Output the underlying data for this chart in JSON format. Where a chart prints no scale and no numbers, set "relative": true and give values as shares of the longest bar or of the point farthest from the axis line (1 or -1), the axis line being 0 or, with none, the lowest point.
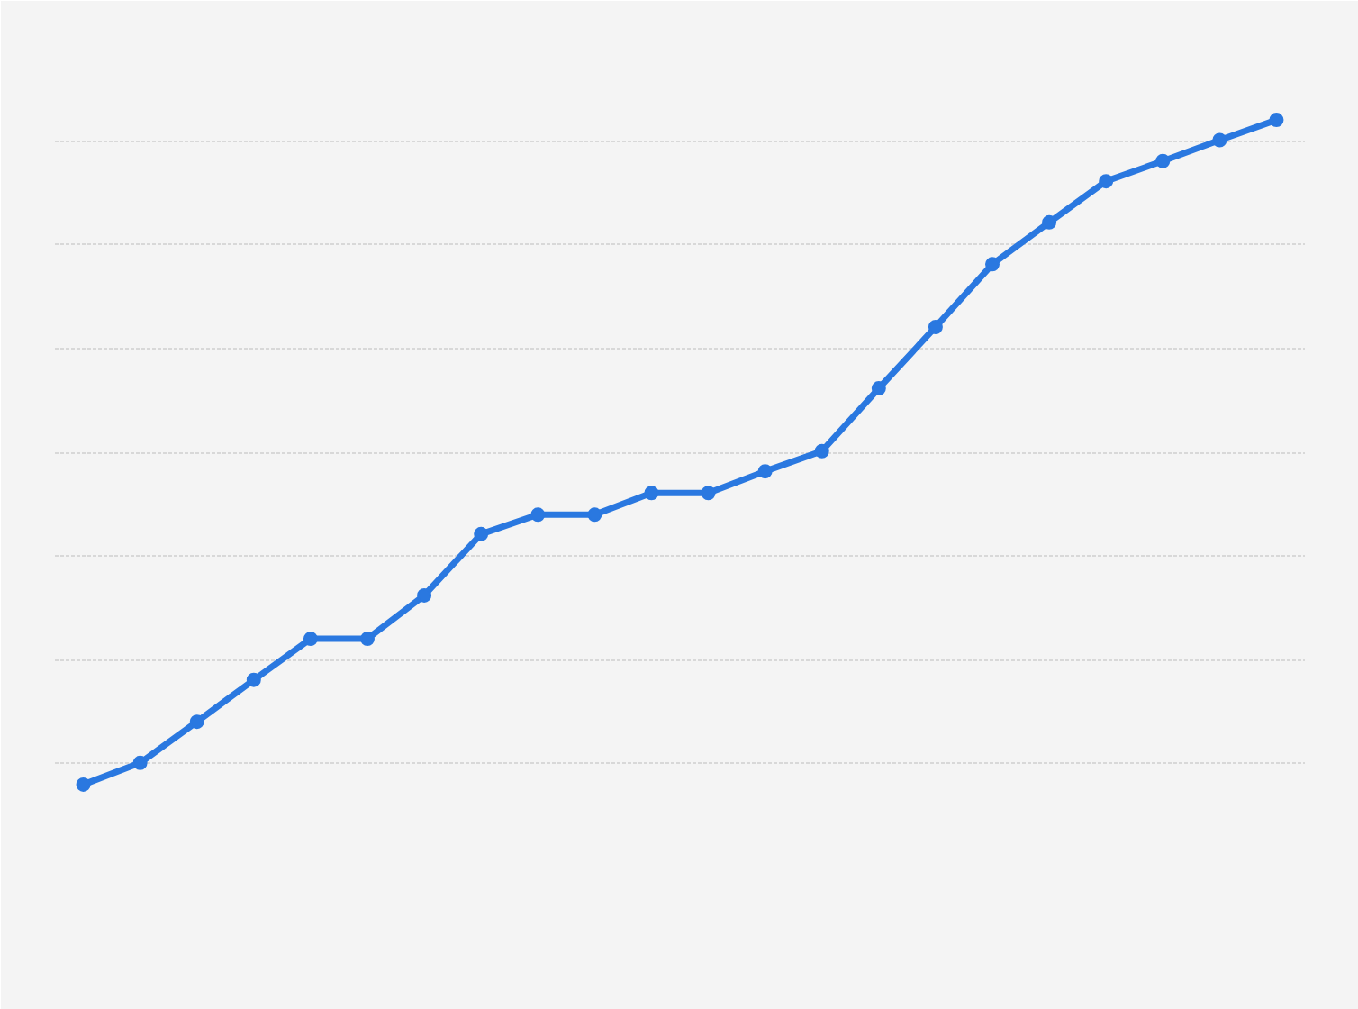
{
  "chart_data": {
    "type": "line",
    "relative": true,
    "categories": [
      null,
      null,
      null,
      null,
      null,
      null,
      null,
      null,
      null,
      null,
      null,
      null,
      null,
      null,
      null,
      null,
      null,
      null,
      null,
      null,
      null,
      null
    ],
    "series": [
      {
        "color": "#2a78e0",
        "values": [
          0.111,
          0.14,
          0.195,
          0.251,
          0.306,
          0.306,
          0.364,
          0.446,
          0.472,
          0.472,
          0.501,
          0.501,
          0.53,
          0.557,
          0.641,
          0.723,
          0.807,
          0.863,
          0.918,
          0.945,
          0.973,
          1.0
        ]
      }
    ],
    "grid": "y",
    "marker": "circle",
    "line_style": "solid"
  }
}
